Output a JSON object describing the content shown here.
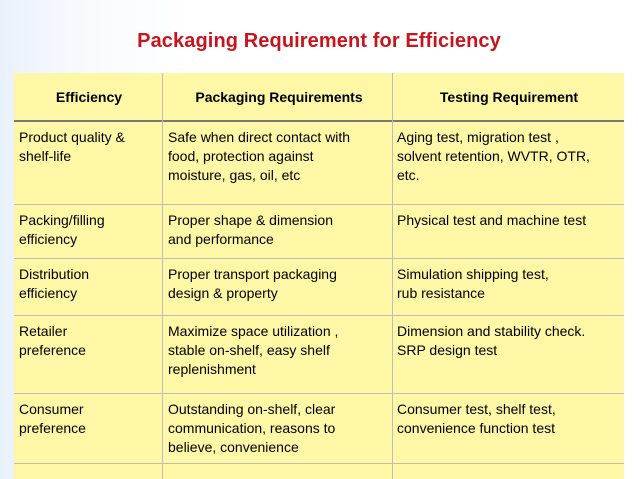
{
  "title": "Packaging Requirement for Efficiency",
  "table": {
    "headers": [
      "Efficiency",
      "Packaging Requirements",
      "Testing Requirement"
    ],
    "rows": [
      [
        "Product quality &\nshelf-life",
        "Safe when direct contact with\nfood, protection against\nmoisture, gas, oil, etc",
        "Aging test, migration test ,\nsolvent retention, WVTR, OTR,\netc."
      ],
      [
        "Packing/filling\nefficiency",
        "Proper shape & dimension\nand performance",
        "Physical test and machine test"
      ],
      [
        "Distribution\nefficiency",
        "Proper transport packaging\ndesign & property",
        "Simulation shipping test,\nrub resistance"
      ],
      [
        "Retailer\npreference",
        "Maximize space utilization ,\nstable on-shelf, easy shelf\nreplenishment",
        "Dimension and stability check.\nSRP design test"
      ],
      [
        "Consumer\npreference",
        "Outstanding on-shelf, clear\ncommunication, reasons to\nbelieve, convenience",
        "Consumer test, shelf test,\nconvenience function test"
      ],
      [
        "",
        "",
        ""
      ]
    ]
  },
  "colors": {
    "title": "#c8141c",
    "table_bg": "#fdf7a6",
    "grid": "#bdbdbd",
    "header_rule": "#7a7a7a"
  }
}
